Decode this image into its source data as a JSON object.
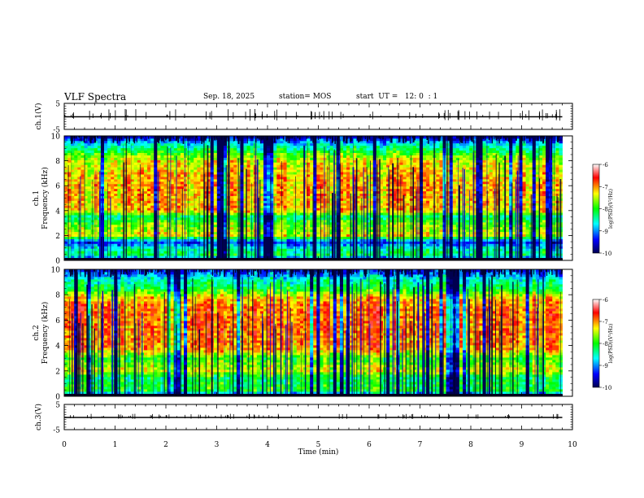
{
  "header": {
    "title": "VLF Spectra",
    "date": "Sep. 18, 2025",
    "station": "station= MOS",
    "start": "start  UT =   12: 0  : 1"
  },
  "chart_data": [
    {
      "type": "line",
      "name": "ch1-waveform",
      "ylabel": "ch.1(V)",
      "ylim": [
        -5,
        5
      ],
      "y_ticks": [
        "5",
        "-5"
      ],
      "xlim": [
        0,
        10
      ],
      "baseline": 0,
      "data_end_min": 9.8
    },
    {
      "type": "heatmap",
      "name": "ch1-spectrogram",
      "ylabel": "Frequency (kHz)",
      "channel_label": "ch.1",
      "ylim": [
        0,
        10
      ],
      "y_ticks": [
        "0",
        "2",
        "4",
        "6",
        "8",
        "10"
      ],
      "xlim": [
        0,
        10
      ],
      "data_end_min": 9.8,
      "colorbar": {
        "label": "log(PSD)(V²/Hz)",
        "range": [
          -10,
          -6
        ],
        "ticks": [
          "-6",
          "-7",
          "-8",
          "-9",
          "-10"
        ]
      },
      "band_profile": [
        {
          "f_khz": 0.0,
          "level": -9.5
        },
        {
          "f_khz": 0.5,
          "level": -8.2
        },
        {
          "f_khz": 1.0,
          "level": -8.6
        },
        {
          "f_khz": 1.5,
          "level": -9.4
        },
        {
          "f_khz": 2.0,
          "level": -7.4
        },
        {
          "f_khz": 3.0,
          "level": -7.8
        },
        {
          "f_khz": 3.5,
          "level": -8.4
        },
        {
          "f_khz": 4.0,
          "level": -7.2
        },
        {
          "f_khz": 6.0,
          "level": -7.1
        },
        {
          "f_khz": 8.0,
          "level": -7.4
        },
        {
          "f_khz": 8.7,
          "level": -8.0
        },
        {
          "f_khz": 9.5,
          "level": -8.9
        },
        {
          "f_khz": 10.0,
          "level": -9.8
        }
      ]
    },
    {
      "type": "heatmap",
      "name": "ch2-spectrogram",
      "ylabel": "Frequency (kHz)",
      "channel_label": "ch.2",
      "ylim": [
        0,
        10
      ],
      "y_ticks": [
        "0",
        "2",
        "4",
        "6",
        "8",
        "10"
      ],
      "xlim": [
        0,
        10
      ],
      "data_end_min": 9.8,
      "colorbar": {
        "label": "log(PSD)(V²/Hz)",
        "range": [
          -10,
          -6
        ],
        "ticks": [
          "-6",
          "-7",
          "-8",
          "-9",
          "-10"
        ]
      },
      "band_profile": [
        {
          "f_khz": 0.0,
          "level": -9.6
        },
        {
          "f_khz": 0.5,
          "level": -8.0
        },
        {
          "f_khz": 1.5,
          "level": -8.2
        },
        {
          "f_khz": 2.0,
          "level": -7.4
        },
        {
          "f_khz": 3.0,
          "level": -7.9
        },
        {
          "f_khz": 3.8,
          "level": -7.0
        },
        {
          "f_khz": 5.0,
          "level": -6.9
        },
        {
          "f_khz": 7.0,
          "level": -6.9
        },
        {
          "f_khz": 7.8,
          "level": -7.2
        },
        {
          "f_khz": 8.5,
          "level": -8.1
        },
        {
          "f_khz": 9.2,
          "level": -8.5
        },
        {
          "f_khz": 10.0,
          "level": -9.4
        }
      ]
    },
    {
      "type": "line",
      "name": "ch3-waveform",
      "ylabel": "ch.3(V)",
      "ylim": [
        -5,
        5
      ],
      "y_ticks": [
        "5",
        "-5"
      ],
      "xlim": [
        0,
        10
      ],
      "baseline": 0,
      "data_end_min": 9.8
    }
  ],
  "xaxis": {
    "label": "Time (min)",
    "ticks": [
      "0",
      "1",
      "2",
      "3",
      "4",
      "5",
      "6",
      "7",
      "8",
      "9",
      "10"
    ]
  }
}
